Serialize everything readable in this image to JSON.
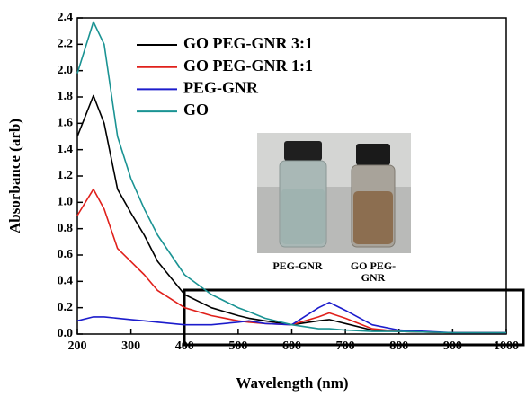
{
  "chart_data": {
    "type": "line",
    "x_label": "Wavelength (nm)",
    "y_label": "Absorbance (arb)",
    "x": [
      200,
      230,
      250,
      275,
      300,
      325,
      350,
      400,
      450,
      500,
      520,
      550,
      600,
      650,
      670,
      700,
      750,
      800,
      900,
      1000
    ],
    "series": [
      {
        "name": "GO PEG-GNR 3:1",
        "color": "#000000",
        "values": [
          1.5,
          1.81,
          1.6,
          1.1,
          0.92,
          0.75,
          0.55,
          0.3,
          0.2,
          0.14,
          0.12,
          0.1,
          0.07,
          0.1,
          0.11,
          0.08,
          0.03,
          0.02,
          0.01,
          0.01
        ]
      },
      {
        "name": "GO PEG-GNR 1:1",
        "color": "#e0201b",
        "values": [
          0.9,
          1.1,
          0.95,
          0.65,
          0.55,
          0.45,
          0.33,
          0.2,
          0.14,
          0.1,
          0.09,
          0.08,
          0.07,
          0.13,
          0.16,
          0.12,
          0.04,
          0.02,
          0.01,
          0.01
        ]
      },
      {
        "name": "PEG-GNR",
        "color": "#1c1ccc",
        "values": [
          0.1,
          0.13,
          0.13,
          0.12,
          0.11,
          0.1,
          0.09,
          0.07,
          0.07,
          0.09,
          0.1,
          0.08,
          0.07,
          0.2,
          0.24,
          0.18,
          0.07,
          0.03,
          0.01,
          0.01
        ]
      },
      {
        "name": "GO",
        "color": "#1a9393",
        "values": [
          1.98,
          2.37,
          2.2,
          1.5,
          1.18,
          0.95,
          0.75,
          0.45,
          0.3,
          0.2,
          0.17,
          0.12,
          0.07,
          0.04,
          0.04,
          0.03,
          0.02,
          0.02,
          0.01,
          0.01
        ]
      }
    ],
    "xlim": [
      200,
      1000
    ],
    "xticks": [
      200,
      300,
      400,
      500,
      600,
      700,
      800,
      900,
      1000
    ],
    "ylim": [
      0,
      2.4
    ],
    "yticks": [
      {
        "value": 0,
        "label": "0.0"
      },
      {
        "value": 0.2,
        "label": "0.2"
      },
      {
        "value": 0.4,
        "label": "0.4"
      },
      {
        "value": 0.6,
        "label": "0.6"
      },
      {
        "value": 0.8,
        "label": "0.8"
      },
      {
        "value": 1.0,
        "label": "1.0"
      },
      {
        "value": 1.2,
        "label": "1.2"
      },
      {
        "value": 1.4,
        "label": "1.4"
      },
      {
        "value": 1.6,
        "label": "1.6"
      },
      {
        "value": 1.8,
        "label": "1.8"
      },
      {
        "value": 2.0,
        "label": "2.0"
      },
      {
        "value": 2.2,
        "label": "2.2"
      },
      {
        "value": 2.4,
        "label": "2.4"
      }
    ],
    "legend": "upper-left",
    "inset_labels": [
      {
        "lines": [
          "PEG-GNR"
        ]
      },
      {
        "lines": [
          "GO PEG-",
          "GNR"
        ]
      }
    ]
  }
}
